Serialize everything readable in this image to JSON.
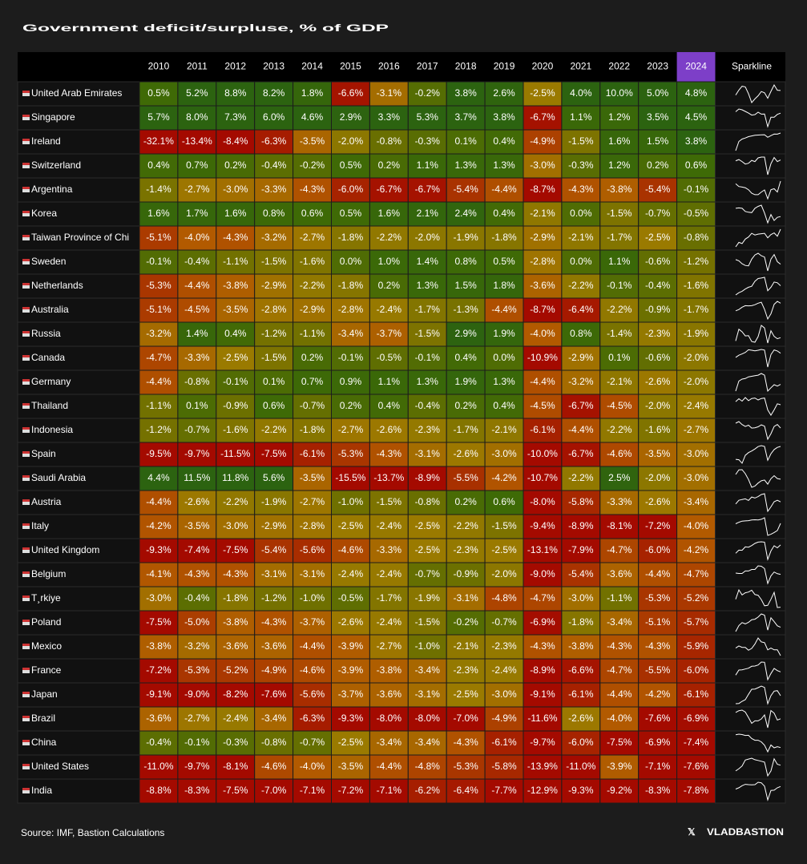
{
  "title": "Government deficit/surpluse, % of GDP",
  "columns": [
    "2010",
    "2011",
    "2012",
    "2013",
    "2014",
    "2015",
    "2016",
    "2017",
    "2018",
    "2019",
    "2020",
    "2021",
    "2022",
    "2023",
    "2024",
    "Sparkline"
  ],
  "rows": [
    {
      "country": "United Arab Emirates",
      "cells": [
        "0.5%",
        "5.2%",
        "8.8%",
        "8.2%",
        "1.8%",
        "-6.6%",
        "-3.1%",
        "-0.2%",
        "3.8%",
        "2.6%",
        "-2.5%",
        "4.0%",
        "10.0%",
        "5.0%",
        "4.8%"
      ]
    },
    {
      "country": "Singapore",
      "cells": [
        "5.7%",
        "8.0%",
        "7.3%",
        "6.0%",
        "4.6%",
        "2.9%",
        "3.3%",
        "5.3%",
        "3.7%",
        "3.8%",
        "-6.7%",
        "1.1%",
        "1.2%",
        "3.5%",
        "4.5%"
      ]
    },
    {
      "country": "Ireland",
      "cells": [
        "-32.1%",
        "-13.4%",
        "-8.4%",
        "-6.3%",
        "-3.5%",
        "-2.0%",
        "-0.8%",
        "-0.3%",
        "0.1%",
        "0.4%",
        "-4.9%",
        "-1.5%",
        "1.6%",
        "1.5%",
        "3.8%"
      ]
    },
    {
      "country": "Switzerland",
      "cells": [
        "0.4%",
        "0.7%",
        "0.2%",
        "-0.4%",
        "-0.2%",
        "0.5%",
        "0.2%",
        "1.1%",
        "1.3%",
        "1.3%",
        "-3.0%",
        "-0.3%",
        "1.2%",
        "0.2%",
        "0.6%"
      ]
    },
    {
      "country": "Argentina",
      "cells": [
        "-1.4%",
        "-2.7%",
        "-3.0%",
        "-3.3%",
        "-4.3%",
        "-6.0%",
        "-6.7%",
        "-6.7%",
        "-5.4%",
        "-4.4%",
        "-8.7%",
        "-4.3%",
        "-3.8%",
        "-5.4%",
        "-0.1%"
      ]
    },
    {
      "country": "Korea",
      "cells": [
        "1.6%",
        "1.7%",
        "1.6%",
        "0.8%",
        "0.6%",
        "0.5%",
        "1.6%",
        "2.1%",
        "2.4%",
        "0.4%",
        "-2.1%",
        "0.0%",
        "-1.5%",
        "-0.7%",
        "-0.5%"
      ]
    },
    {
      "country": "Taiwan Province of Chi",
      "cells": [
        "-5.1%",
        "-4.0%",
        "-4.3%",
        "-3.2%",
        "-2.7%",
        "-1.8%",
        "-2.2%",
        "-2.0%",
        "-1.9%",
        "-1.8%",
        "-2.9%",
        "-2.1%",
        "-1.7%",
        "-2.5%",
        "-0.8%"
      ]
    },
    {
      "country": "Sweden",
      "cells": [
        "-0.1%",
        "-0.4%",
        "-1.1%",
        "-1.5%",
        "-1.6%",
        "0.0%",
        "1.0%",
        "1.4%",
        "0.8%",
        "0.5%",
        "-2.8%",
        "0.0%",
        "1.1%",
        "-0.6%",
        "-1.2%"
      ]
    },
    {
      "country": "Netherlands",
      "cells": [
        "-5.3%",
        "-4.4%",
        "-3.8%",
        "-2.9%",
        "-2.2%",
        "-1.8%",
        "0.2%",
        "1.3%",
        "1.5%",
        "1.8%",
        "-3.6%",
        "-2.2%",
        "-0.1%",
        "-0.4%",
        "-1.6%"
      ]
    },
    {
      "country": "Australia",
      "cells": [
        "-5.1%",
        "-4.5%",
        "-3.5%",
        "-2.8%",
        "-2.9%",
        "-2.8%",
        "-2.4%",
        "-1.7%",
        "-1.3%",
        "-4.4%",
        "-8.7%",
        "-6.4%",
        "-2.2%",
        "-0.9%",
        "-1.7%"
      ]
    },
    {
      "country": "Russia",
      "cells": [
        "-3.2%",
        "1.4%",
        "0.4%",
        "-1.2%",
        "-1.1%",
        "-3.4%",
        "-3.7%",
        "-1.5%",
        "2.9%",
        "1.9%",
        "-4.0%",
        "0.8%",
        "-1.4%",
        "-2.3%",
        "-1.9%"
      ]
    },
    {
      "country": "Canada",
      "cells": [
        "-4.7%",
        "-3.3%",
        "-2.5%",
        "-1.5%",
        "0.2%",
        "-0.1%",
        "-0.5%",
        "-0.1%",
        "0.4%",
        "0.0%",
        "-10.9%",
        "-2.9%",
        "0.1%",
        "-0.6%",
        "-2.0%"
      ]
    },
    {
      "country": "Germany",
      "cells": [
        "-4.4%",
        "-0.8%",
        "-0.1%",
        "0.1%",
        "0.7%",
        "0.9%",
        "1.1%",
        "1.3%",
        "1.9%",
        "1.3%",
        "-4.4%",
        "-3.2%",
        "-2.1%",
        "-2.6%",
        "-2.0%"
      ]
    },
    {
      "country": "Thailand",
      "cells": [
        "-1.1%",
        "0.1%",
        "-0.9%",
        "0.6%",
        "-0.7%",
        "0.2%",
        "0.4%",
        "-0.4%",
        "0.2%",
        "0.4%",
        "-4.5%",
        "-6.7%",
        "-4.5%",
        "-2.0%",
        "-2.4%"
      ]
    },
    {
      "country": "Indonesia",
      "cells": [
        "-1.2%",
        "-0.7%",
        "-1.6%",
        "-2.2%",
        "-1.8%",
        "-2.7%",
        "-2.6%",
        "-2.3%",
        "-1.7%",
        "-2.1%",
        "-6.1%",
        "-4.4%",
        "-2.2%",
        "-1.6%",
        "-2.7%"
      ]
    },
    {
      "country": "Spain",
      "cells": [
        "-9.5%",
        "-9.7%",
        "-11.5%",
        "-7.5%",
        "-6.1%",
        "-5.3%",
        "-4.3%",
        "-3.1%",
        "-2.6%",
        "-3.0%",
        "-10.0%",
        "-6.7%",
        "-4.6%",
        "-3.5%",
        "-3.0%"
      ]
    },
    {
      "country": "Saudi Arabia",
      "cells": [
        "4.4%",
        "11.5%",
        "11.8%",
        "5.6%",
        "-3.5%",
        "-15.5%",
        "-13.7%",
        "-8.9%",
        "-5.5%",
        "-4.2%",
        "-10.7%",
        "-2.2%",
        "2.5%",
        "-2.0%",
        "-3.0%"
      ]
    },
    {
      "country": "Austria",
      "cells": [
        "-4.4%",
        "-2.6%",
        "-2.2%",
        "-1.9%",
        "-2.7%",
        "-1.0%",
        "-1.5%",
        "-0.8%",
        "0.2%",
        "0.6%",
        "-8.0%",
        "-5.8%",
        "-3.3%",
        "-2.6%",
        "-3.4%"
      ]
    },
    {
      "country": "Italy",
      "cells": [
        "-4.2%",
        "-3.5%",
        "-3.0%",
        "-2.9%",
        "-2.8%",
        "-2.5%",
        "-2.4%",
        "-2.5%",
        "-2.2%",
        "-1.5%",
        "-9.4%",
        "-8.9%",
        "-8.1%",
        "-7.2%",
        "-4.0%"
      ]
    },
    {
      "country": "United Kingdom",
      "cells": [
        "-9.3%",
        "-7.4%",
        "-7.5%",
        "-5.4%",
        "-5.6%",
        "-4.6%",
        "-3.3%",
        "-2.5%",
        "-2.3%",
        "-2.5%",
        "-13.1%",
        "-7.9%",
        "-4.7%",
        "-6.0%",
        "-4.2%"
      ]
    },
    {
      "country": "Belgium",
      "cells": [
        "-4.1%",
        "-4.3%",
        "-4.3%",
        "-3.1%",
        "-3.1%",
        "-2.4%",
        "-2.4%",
        "-0.7%",
        "-0.9%",
        "-2.0%",
        "-9.0%",
        "-5.4%",
        "-3.6%",
        "-4.4%",
        "-4.7%"
      ]
    },
    {
      "country": "T¸rkiye",
      "cells": [
        "-3.0%",
        "-0.4%",
        "-1.8%",
        "-1.2%",
        "-1.0%",
        "-0.5%",
        "-1.7%",
        "-1.9%",
        "-3.1%",
        "-4.8%",
        "-4.7%",
        "-3.0%",
        "-1.1%",
        "-5.3%",
        "-5.2%"
      ]
    },
    {
      "country": "Poland",
      "cells": [
        "-7.5%",
        "-5.0%",
        "-3.8%",
        "-4.3%",
        "-3.7%",
        "-2.6%",
        "-2.4%",
        "-1.5%",
        "-0.2%",
        "-0.7%",
        "-6.9%",
        "-1.8%",
        "-3.4%",
        "-5.1%",
        "-5.7%"
      ]
    },
    {
      "country": "Mexico",
      "cells": [
        "-3.8%",
        "-3.2%",
        "-3.6%",
        "-3.6%",
        "-4.4%",
        "-3.9%",
        "-2.7%",
        "-1.0%",
        "-2.1%",
        "-2.3%",
        "-4.3%",
        "-3.8%",
        "-4.3%",
        "-4.3%",
        "-5.9%"
      ]
    },
    {
      "country": "France",
      "cells": [
        "-7.2%",
        "-5.3%",
        "-5.2%",
        "-4.9%",
        "-4.6%",
        "-3.9%",
        "-3.8%",
        "-3.4%",
        "-2.3%",
        "-2.4%",
        "-8.9%",
        "-6.6%",
        "-4.7%",
        "-5.5%",
        "-6.0%"
      ]
    },
    {
      "country": "Japan",
      "cells": [
        "-9.1%",
        "-9.0%",
        "-8.2%",
        "-7.6%",
        "-5.6%",
        "-3.7%",
        "-3.6%",
        "-3.1%",
        "-2.5%",
        "-3.0%",
        "-9.1%",
        "-6.1%",
        "-4.4%",
        "-4.2%",
        "-6.1%"
      ]
    },
    {
      "country": "Brazil",
      "cells": [
        "-3.6%",
        "-2.7%",
        "-2.4%",
        "-3.4%",
        "-6.3%",
        "-9.3%",
        "-8.0%",
        "-8.0%",
        "-7.0%",
        "-4.9%",
        "-11.6%",
        "-2.6%",
        "-4.0%",
        "-7.6%",
        "-6.9%"
      ]
    },
    {
      "country": "China",
      "cells": [
        "-0.4%",
        "-0.1%",
        "-0.3%",
        "-0.8%",
        "-0.7%",
        "-2.5%",
        "-3.4%",
        "-3.4%",
        "-4.3%",
        "-6.1%",
        "-9.7%",
        "-6.0%",
        "-7.5%",
        "-6.9%",
        "-7.4%"
      ]
    },
    {
      "country": "United States",
      "cells": [
        "-11.0%",
        "-9.7%",
        "-8.1%",
        "-4.6%",
        "-4.0%",
        "-3.5%",
        "-4.4%",
        "-4.8%",
        "-5.3%",
        "-5.8%",
        "-13.9%",
        "-11.0%",
        "-3.9%",
        "-7.1%",
        "-7.6%"
      ]
    },
    {
      "country": "India",
      "cells": [
        "-8.8%",
        "-8.3%",
        "-7.5%",
        "-7.0%",
        "-7.1%",
        "-7.2%",
        "-7.1%",
        "-6.2%",
        "-6.4%",
        "-7.7%",
        "-12.9%",
        "-9.3%",
        "-9.2%",
        "-8.3%",
        "-7.8%"
      ]
    }
  ],
  "footer": {
    "source": "Source: IMF, Bastion Calculations",
    "brand": "VLADBASTION"
  }
}
